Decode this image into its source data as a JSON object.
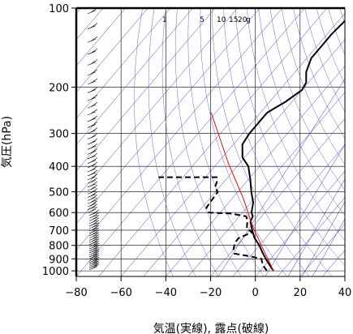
{
  "chart_data": {
    "type": "line",
    "title": "",
    "xlabel": "気温(実線), 露点(破線)",
    "ylabel": "気圧(hPa)",
    "xlim": [
      -80,
      40
    ],
    "ylim": [
      1050,
      100
    ],
    "y_scale": "log",
    "xticks": [
      -80,
      -60,
      -40,
      -20,
      0,
      20,
      40
    ],
    "yticks": [
      100,
      200,
      300,
      400,
      500,
      600,
      700,
      800,
      900,
      1000
    ],
    "mixing_ratio_labels": [
      "1",
      "5",
      "10",
      "15",
      "20",
      "g"
    ],
    "mixing_ratios": [
      1,
      5,
      10,
      15,
      20
    ],
    "grid": true,
    "series": [
      {
        "style": "solid",
        "color": "#000000",
        "points": [
          {
            "t": 6,
            "p": 1000
          },
          {
            "t": 2,
            "p": 950
          },
          {
            "t": -2,
            "p": 900
          },
          {
            "t": -6,
            "p": 850
          },
          {
            "t": -10,
            "p": 800
          },
          {
            "t": -15,
            "p": 750
          },
          {
            "t": -19,
            "p": 700
          },
          {
            "t": -23,
            "p": 650
          },
          {
            "t": -24,
            "p": 620
          },
          {
            "t": -26,
            "p": 600
          },
          {
            "t": -29,
            "p": 550
          },
          {
            "t": -34,
            "p": 500
          },
          {
            "t": -39,
            "p": 450
          },
          {
            "t": -45,
            "p": 400
          },
          {
            "t": -51,
            "p": 370
          },
          {
            "t": -56,
            "p": 330
          },
          {
            "t": -57,
            "p": 300
          },
          {
            "t": -57,
            "p": 280
          },
          {
            "t": -57,
            "p": 265
          },
          {
            "t": -57,
            "p": 250
          },
          {
            "t": -55,
            "p": 238
          },
          {
            "t": -53,
            "p": 228
          },
          {
            "t": -50,
            "p": 205
          },
          {
            "t": -51,
            "p": 192
          },
          {
            "t": -55,
            "p": 175
          },
          {
            "t": -58,
            "p": 155
          },
          {
            "t": -58,
            "p": 140
          },
          {
            "t": -58,
            "p": 125
          },
          {
            "t": -57,
            "p": 110
          },
          {
            "t": -58,
            "p": 100
          }
        ]
      },
      {
        "style": "dashed",
        "color": "#000000",
        "points": [
          {
            "t": 3,
            "p": 1000
          },
          {
            "t": -1,
            "p": 950
          },
          {
            "t": -4,
            "p": 900
          },
          {
            "t": -10,
            "p": 880
          },
          {
            "t": -18,
            "p": 860
          },
          {
            "t": -20,
            "p": 830
          },
          {
            "t": -22,
            "p": 780
          },
          {
            "t": -22,
            "p": 750
          },
          {
            "t": -20,
            "p": 730
          },
          {
            "t": -18,
            "p": 715
          },
          {
            "t": -22,
            "p": 690
          },
          {
            "t": -25,
            "p": 640
          },
          {
            "t": -27,
            "p": 620
          },
          {
            "t": -35,
            "p": 605
          },
          {
            "t": -45,
            "p": 600
          },
          {
            "t": -48,
            "p": 575
          },
          {
            "t": -49,
            "p": 500
          },
          {
            "t": -52,
            "p": 480
          },
          {
            "t": -53,
            "p": 460
          },
          {
            "t": -55,
            "p": 440
          },
          {
            "t": -70,
            "p": 440
          },
          {
            "t": -81,
            "p": 440
          }
        ]
      },
      {
        "style": "solid",
        "color": "#ff0000",
        "points": [
          {
            "t": 6,
            "p": 1000
          },
          {
            "t": -5,
            "p": 850
          },
          {
            "t": -20,
            "p": 680
          },
          {
            "t": -35,
            "p": 530
          },
          {
            "t": -55,
            "p": 390
          },
          {
            "t": -82,
            "p": 250
          }
        ]
      }
    ]
  }
}
